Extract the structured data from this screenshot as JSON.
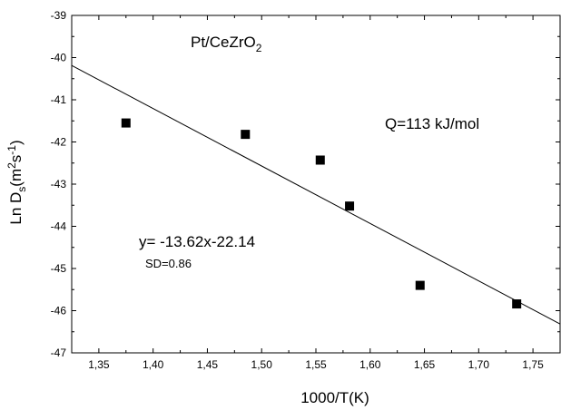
{
  "chart_data": {
    "type": "scatter",
    "xlabel": "1000/T(K)",
    "ylabel": {
      "base": "Ln D",
      "sub": "s",
      "mid": "(m",
      "sup1": "2",
      "mid2": "s",
      "sup2": "-1",
      "end": ")"
    },
    "xlim": [
      1.325,
      1.775
    ],
    "ylim": [
      -47,
      -39
    ],
    "x_ticks": [
      1.35,
      1.4,
      1.45,
      1.5,
      1.55,
      1.6,
      1.65,
      1.7,
      1.75
    ],
    "x_tick_labels": [
      "1,35",
      "1,40",
      "1,45",
      "1,50",
      "1,55",
      "1,60",
      "1,65",
      "1,70",
      "1,75"
    ],
    "y_ticks": [
      -47,
      -46,
      -45,
      -44,
      -43,
      -42,
      -41,
      -40,
      -39
    ],
    "y_tick_labels": [
      "-47",
      "-46",
      "-45",
      "-44",
      "-43",
      "-42",
      "-41",
      "-40",
      "-39"
    ],
    "grid": false,
    "series": [
      {
        "x": [
          1.375,
          1.485,
          1.554,
          1.581,
          1.646,
          1.735
        ],
        "y": [
          -41.55,
          -41.82,
          -42.43,
          -43.52,
          -45.4,
          -45.84
        ],
        "marker": "square",
        "color": "#000000"
      }
    ],
    "fit_line": {
      "slope": -13.62,
      "intercept": -22.14,
      "color": "#000000"
    },
    "annotations": {
      "material": {
        "base": "Pt/CeZrO",
        "sub": "2"
      },
      "activation": "Q=113 kJ/mol",
      "equation": "y= -13.62x-22.14",
      "sd": "SD=0.86"
    }
  }
}
